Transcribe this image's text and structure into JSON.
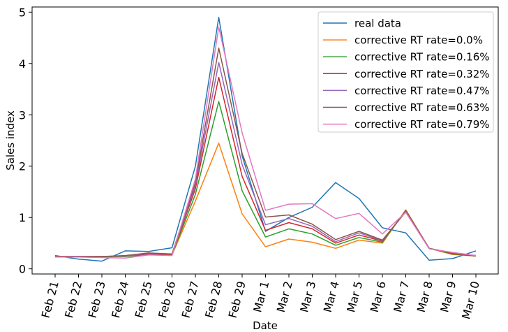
{
  "chart_data": {
    "type": "line",
    "title": "",
    "xlabel": "Date",
    "ylabel": "Sales index",
    "ylim": [
      -0.1,
      5.1
    ],
    "yticks": [
      0,
      1,
      2,
      3,
      4,
      5
    ],
    "grid": false,
    "legend_position": "top-right",
    "categories": [
      "Feb 21",
      "Feb 22",
      "Feb 23",
      "Feb 24",
      "Feb 25",
      "Feb 26",
      "Feb 27",
      "Feb 28",
      "Feb 29",
      "Mar 1",
      "Mar 2",
      "Mar 3",
      "Mar 4",
      "Mar 5",
      "Mar 6",
      "Mar 7",
      "Mar 8",
      "Mar 9",
      "Mar 10"
    ],
    "series": [
      {
        "name": "real data",
        "color": "#1f77b4",
        "values": [
          0.26,
          0.19,
          0.15,
          0.35,
          0.34,
          0.41,
          2.0,
          4.9,
          2.2,
          0.73,
          1.0,
          1.2,
          1.68,
          1.37,
          0.8,
          0.7,
          0.17,
          0.2,
          0.35
        ]
      },
      {
        "name": "corrective RT rate=0.0%",
        "color": "#ff7f0e",
        "values": [
          0.24,
          0.24,
          0.24,
          0.24,
          0.28,
          0.27,
          1.32,
          2.45,
          1.07,
          0.43,
          0.58,
          0.52,
          0.4,
          0.56,
          0.5,
          1.15,
          0.4,
          0.28,
          0.25
        ]
      },
      {
        "name": "corrective RT rate=0.16%",
        "color": "#2ca02c",
        "values": [
          0.24,
          0.24,
          0.24,
          0.24,
          0.28,
          0.27,
          1.45,
          3.26,
          1.52,
          0.62,
          0.78,
          0.68,
          0.46,
          0.61,
          0.52,
          1.14,
          0.4,
          0.29,
          0.25
        ]
      },
      {
        "name": "corrective RT rate=0.32%",
        "color": "#d62728",
        "values": [
          0.24,
          0.24,
          0.24,
          0.25,
          0.29,
          0.28,
          1.56,
          3.73,
          1.8,
          0.75,
          0.9,
          0.78,
          0.5,
          0.66,
          0.54,
          1.13,
          0.4,
          0.3,
          0.25
        ]
      },
      {
        "name": "corrective RT rate=0.47%",
        "color": "#9467bd",
        "values": [
          0.24,
          0.24,
          0.24,
          0.25,
          0.3,
          0.29,
          1.62,
          4.02,
          2.03,
          0.86,
          0.98,
          0.83,
          0.53,
          0.7,
          0.55,
          1.12,
          0.4,
          0.31,
          0.26
        ]
      },
      {
        "name": "corrective RT rate=0.63%",
        "color": "#8c564b",
        "values": [
          0.24,
          0.24,
          0.24,
          0.26,
          0.31,
          0.29,
          1.68,
          4.3,
          2.25,
          1.01,
          1.05,
          0.87,
          0.57,
          0.73,
          0.56,
          1.11,
          0.4,
          0.31,
          0.26
        ]
      },
      {
        "name": "corrective RT rate=0.79%",
        "color": "#e377c2",
        "values": [
          0.23,
          0.23,
          0.22,
          0.21,
          0.27,
          0.26,
          1.75,
          4.71,
          2.65,
          1.14,
          1.26,
          1.27,
          0.98,
          1.08,
          0.68,
          1.1,
          0.39,
          0.32,
          0.26
        ]
      }
    ]
  }
}
